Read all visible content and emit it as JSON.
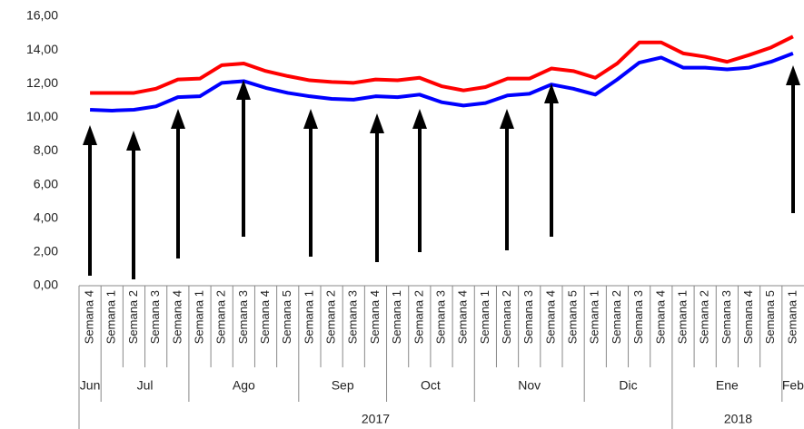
{
  "chart_data": {
    "type": "line",
    "category_groups": [
      {
        "label": "2017",
        "months": [
          {
            "label": "Jun",
            "weeks": [
              "Semana 4"
            ]
          },
          {
            "label": "Jul",
            "weeks": [
              "Semana 1",
              "Semana 2",
              "Semana 3",
              "Semana 4"
            ]
          },
          {
            "label": "Ago",
            "weeks": [
              "Semana 1",
              "Semana 2",
              "Semana 3",
              "Semana 4",
              "Semana 5"
            ]
          },
          {
            "label": "Sep",
            "weeks": [
              "Semana 1",
              "Semana 2",
              "Semana 3",
              "Semana 4"
            ]
          },
          {
            "label": "Oct",
            "weeks": [
              "Semana 1",
              "Semana 2",
              "Semana 3",
              "Semana 4"
            ]
          },
          {
            "label": "Nov",
            "weeks": [
              "Semana 1",
              "Semana 2",
              "Semana 3",
              "Semana 4",
              "Semana 5"
            ]
          },
          {
            "label": "Dic",
            "weeks": [
              "Semana 1",
              "Semana 2",
              "Semana 3",
              "Semana 4"
            ]
          }
        ]
      },
      {
        "label": "2018",
        "months": [
          {
            "label": "Ene",
            "weeks": [
              "Semana 1",
              "Semana 2",
              "Semana 3",
              "Semana 4",
              "Semana 5"
            ]
          },
          {
            "label": "Feb",
            "weeks": [
              "Semana 1"
            ]
          }
        ]
      }
    ],
    "series": [
      {
        "color": "#ff0000",
        "values": [
          11.45,
          11.45,
          11.45,
          11.7,
          12.25,
          12.3,
          13.1,
          13.2,
          12.75,
          12.45,
          12.2,
          12.1,
          12.05,
          12.25,
          12.2,
          12.35,
          11.85,
          11.6,
          11.8,
          12.3,
          12.3,
          12.9,
          12.75,
          12.35,
          13.2,
          14.45,
          14.45,
          13.8,
          13.6,
          13.3,
          13.7,
          14.15,
          14.8
        ]
      },
      {
        "color": "#0000ff",
        "values": [
          10.45,
          10.4,
          10.45,
          10.65,
          11.2,
          11.25,
          12.05,
          12.15,
          11.75,
          11.45,
          11.25,
          11.1,
          11.05,
          11.25,
          11.2,
          11.35,
          10.9,
          10.7,
          10.85,
          11.3,
          11.4,
          11.95,
          11.7,
          11.35,
          12.25,
          13.25,
          13.55,
          12.95,
          12.95,
          12.85,
          12.95,
          13.3,
          13.8
        ]
      }
    ],
    "ylim": [
      0,
      16
    ],
    "yticks": [
      {
        "value": 0,
        "label": "0,00"
      },
      {
        "value": 2,
        "label": "2,00"
      },
      {
        "value": 4,
        "label": "4,00"
      },
      {
        "value": 6,
        "label": "6,00"
      },
      {
        "value": 8,
        "label": "8,00"
      },
      {
        "value": 10,
        "label": "10,00"
      },
      {
        "value": 12,
        "label": "12,00"
      },
      {
        "value": 14,
        "label": "14,00"
      },
      {
        "value": 16,
        "label": "16,00"
      }
    ],
    "grid": false
  }
}
